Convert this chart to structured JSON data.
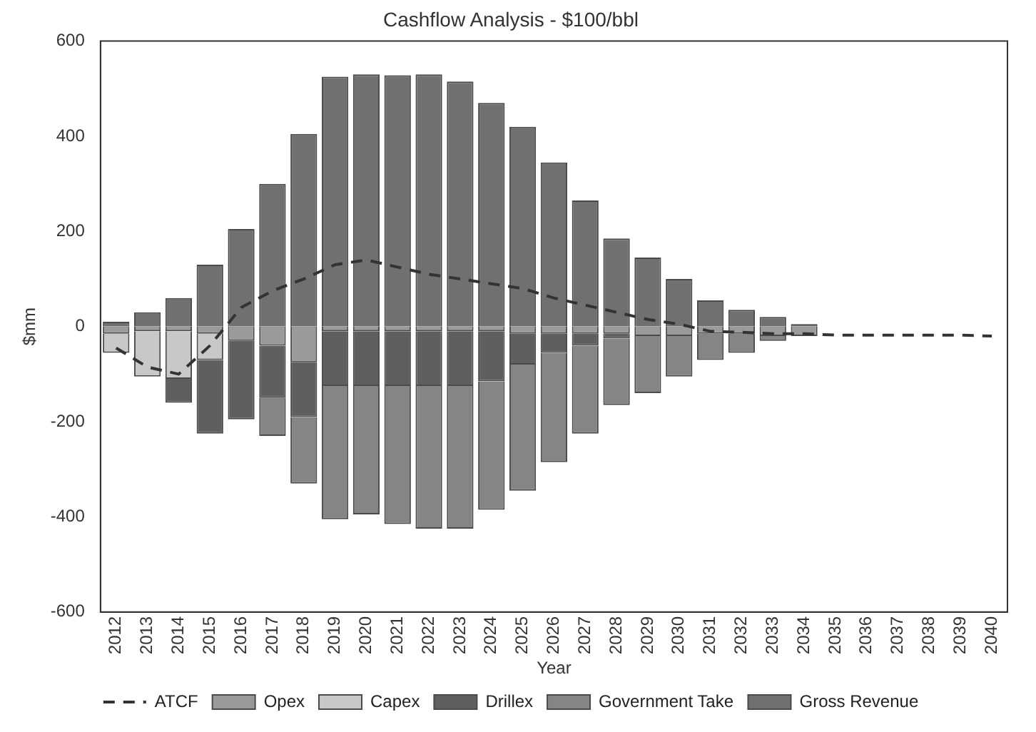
{
  "chart_data": {
    "type": "bar",
    "title": "Cashflow Analysis - $100/bbl",
    "xlabel": "Year",
    "ylabel": "$mm",
    "categories": [
      "2012",
      "2013",
      "2014",
      "2015",
      "2016",
      "2017",
      "2018",
      "2019",
      "2020",
      "2021",
      "2022",
      "2023",
      "2024",
      "2025",
      "2026",
      "2027",
      "2028",
      "2029",
      "2030",
      "2031",
      "2032",
      "2033",
      "2034",
      "2035",
      "2036",
      "2037",
      "2038",
      "2039",
      "2040"
    ],
    "stacked": true,
    "legend": "bottom",
    "grid": false,
    "ylim": [
      -600,
      600
    ],
    "yticks": [
      -600,
      -400,
      -200,
      0,
      200,
      400,
      600
    ],
    "series": [
      {
        "name": "Opex",
        "color": "#9a9a9a",
        "values": [
          -15,
          -10,
          -10,
          -15,
          -30,
          -40,
          -75,
          -10,
          -10,
          -10,
          -10,
          -10,
          -10,
          -15,
          -15,
          -15,
          -15,
          -20,
          -20,
          -15,
          -15,
          -20,
          -20,
          0,
          0,
          0,
          0,
          0,
          0
        ]
      },
      {
        "name": "Capex",
        "color": "#c8c8c8",
        "values": [
          -40,
          -95,
          -100,
          -55,
          0,
          0,
          0,
          0,
          0,
          0,
          0,
          0,
          0,
          0,
          0,
          0,
          0,
          0,
          0,
          0,
          0,
          0,
          0,
          0,
          0,
          0,
          0,
          0,
          0
        ]
      },
      {
        "name": "Drillex",
        "color": "#5f5f5f",
        "values": [
          0,
          0,
          -50,
          -155,
          -165,
          -110,
          -115,
          -115,
          -115,
          -115,
          -115,
          -115,
          -105,
          -65,
          -40,
          -25,
          -10,
          0,
          0,
          0,
          0,
          0,
          0,
          0,
          0,
          0,
          0,
          0,
          0
        ]
      },
      {
        "name": "Government Take",
        "color": "#858585",
        "values": [
          0,
          0,
          0,
          0,
          0,
          -80,
          -140,
          -280,
          -270,
          -290,
          -300,
          -300,
          -270,
          -265,
          -230,
          -185,
          -140,
          -120,
          -85,
          -55,
          -40,
          -10,
          0,
          0,
          0,
          0,
          0,
          0,
          0
        ]
      },
      {
        "name": "Gross Revenue",
        "color": "#707070",
        "values": [
          10,
          30,
          60,
          130,
          205,
          300,
          405,
          525,
          530,
          528,
          530,
          515,
          470,
          420,
          345,
          265,
          185,
          145,
          100,
          55,
          35,
          20,
          5,
          0,
          0,
          0,
          0,
          0,
          0
        ]
      },
      {
        "name": "ATCF",
        "type": "line",
        "color": "#333333",
        "line_style": "dashed",
        "marker": "none",
        "values": [
          -45,
          -85,
          -100,
          -40,
          40,
          75,
          100,
          130,
          140,
          125,
          110,
          100,
          90,
          80,
          60,
          45,
          30,
          15,
          5,
          -10,
          -12,
          -15,
          -15,
          -18,
          -18,
          -18,
          -18,
          -18,
          -20
        ]
      }
    ]
  }
}
